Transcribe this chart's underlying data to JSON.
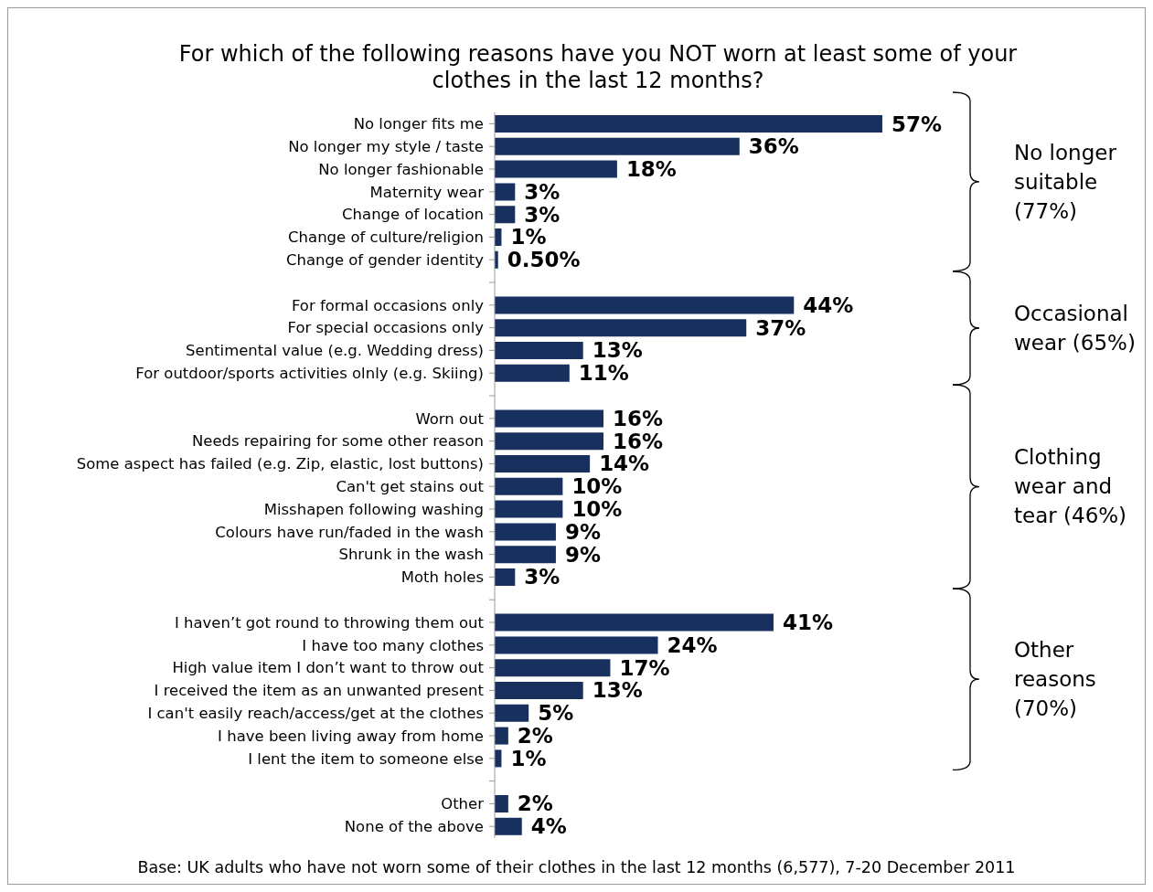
{
  "chart_data": {
    "type": "bar",
    "orientation": "horizontal",
    "title": "For which of the following reasons have you NOT worn at least some of your clothes in the last 12 months?",
    "categories": [
      "No longer fits me",
      "No longer my style / taste",
      "No longer fashionable",
      "Maternity wear",
      "Change of location",
      "Change of culture/religion",
      "Change of gender identity",
      null,
      "For formal occasions only",
      "For special occasions only",
      "Sentimental value (e.g. Wedding dress)",
      "For outdoor/sports activities olnly (e.g. Skiing)",
      null,
      "Worn out",
      "Needs repairing for some other reason",
      "Some aspect has failed (e.g. Zip, elastic, lost buttons)",
      "Can't get stains out",
      "Misshapen following washing",
      "Colours have run/faded in the wash",
      "Shrunk in the wash",
      "Moth holes",
      null,
      "I haven’t got round to throwing them out",
      "I have too many clothes",
      "High value item I don’t want to throw out",
      "I received the item as an unwanted present",
      "I can't easily reach/access/get at the clothes",
      "I have been living away from home",
      "I lent the item to someone else",
      null,
      "Other",
      "None of the above"
    ],
    "values": [
      57,
      36,
      18,
      3,
      3,
      1,
      0.5,
      null,
      44,
      37,
      13,
      11,
      null,
      16,
      16,
      14,
      10,
      10,
      9,
      9,
      3,
      null,
      41,
      24,
      17,
      13,
      5,
      2,
      1,
      null,
      2,
      4
    ],
    "value_labels": [
      "57%",
      "36%",
      "18%",
      "3%",
      "3%",
      "1%",
      "0.50%",
      null,
      "44%",
      "37%",
      "13%",
      "11%",
      null,
      "16%",
      "16%",
      "14%",
      "10%",
      "10%",
      "9%",
      "9%",
      "3%",
      null,
      "41%",
      "24%",
      "17%",
      "13%",
      "5%",
      "2%",
      "1%",
      null,
      "2%",
      "4%"
    ],
    "color": "#17305e",
    "tick_labels": "y",
    "annotations": [
      "No longer suitable (77%)",
      "Occasional wear (65%)",
      "Clothing wear and tear (46%)",
      "Other reasons (70%)",
      "Base: UK adults who have not worn some of their clothes in the last 12 months (6,577), 7-20 December 2011"
    ]
  }
}
